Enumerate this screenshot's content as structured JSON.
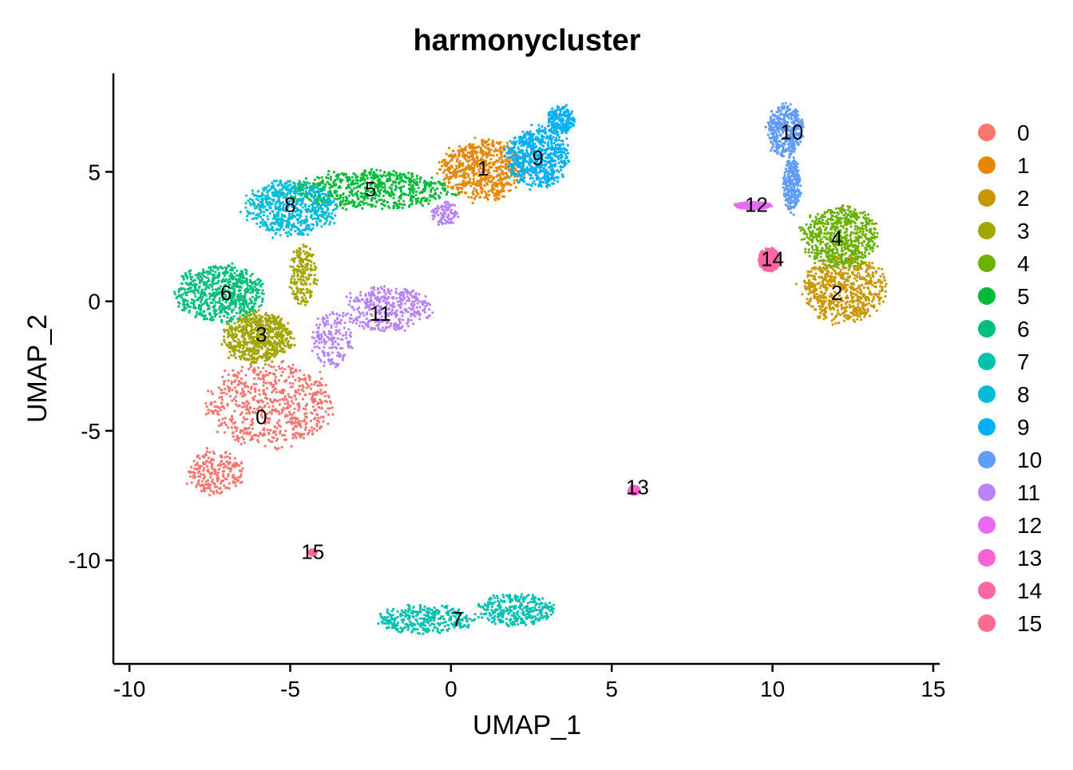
{
  "chart_data": {
    "type": "scatter",
    "title": "harmonycluster",
    "xlabel": "UMAP_1",
    "ylabel": "UMAP_2",
    "xlim": [
      -10.5,
      15.2
    ],
    "ylim": [
      -14,
      8.8
    ],
    "x_ticks": [
      -10,
      -5,
      0,
      5,
      10,
      15
    ],
    "y_ticks": [
      -10,
      -5,
      0,
      5
    ],
    "x_tick_labels": [
      "-10",
      "-5",
      "0",
      "5",
      "10",
      "15"
    ],
    "y_tick_labels": [
      "-10",
      "-5",
      "0",
      "5"
    ],
    "grid": false,
    "legend_position": "right",
    "legend": [
      "0",
      "1",
      "2",
      "3",
      "4",
      "5",
      "6",
      "7",
      "8",
      "9",
      "10",
      "11",
      "12",
      "13",
      "14",
      "15"
    ],
    "colors": [
      "#F8766D",
      "#E58700",
      "#C99800",
      "#A3A500",
      "#6BB100",
      "#00BA38",
      "#00BF7D",
      "#00C0AF",
      "#00BCD8",
      "#00B0F6",
      "#619CFF",
      "#B983FF",
      "#E76BF3",
      "#FD61D1",
      "#FF67A4",
      "#FF6C91"
    ],
    "series": [
      {
        "name": "0",
        "center": [
          -5.9,
          -4.5
        ],
        "blobs": [
          [
            -5.6,
            -4.0,
            1.8,
            1.5,
            1
          ],
          [
            -7.3,
            -6.6,
            0.8,
            0.8,
            0.35
          ]
        ]
      },
      {
        "name": "1",
        "center": [
          1.0,
          5.1
        ],
        "blobs": [
          [
            1.0,
            5.1,
            1.2,
            1.1,
            1
          ]
        ]
      },
      {
        "name": "2",
        "center": [
          12.0,
          0.3
        ],
        "blobs": [
          [
            12.2,
            0.5,
            1.2,
            1.2,
            1
          ]
        ]
      },
      {
        "name": "3",
        "center": [
          -5.9,
          -1.3
        ],
        "blobs": [
          [
            -6.0,
            -1.4,
            1.0,
            0.9,
            1
          ],
          [
            -4.6,
            1.0,
            0.4,
            1.1,
            0.3
          ]
        ]
      },
      {
        "name": "4",
        "center": [
          12.0,
          2.4
        ],
        "blobs": [
          [
            12.1,
            2.5,
            1.1,
            1.1,
            1
          ]
        ]
      },
      {
        "name": "5",
        "center": [
          -2.5,
          4.3
        ],
        "blobs": [
          [
            -2.5,
            4.3,
            2.3,
            0.7,
            1
          ]
        ]
      },
      {
        "name": "6",
        "center": [
          -7.0,
          0.3
        ],
        "blobs": [
          [
            -7.2,
            0.3,
            1.3,
            1.0,
            1
          ]
        ]
      },
      {
        "name": "7",
        "center": [
          0.2,
          -12.3
        ],
        "blobs": [
          [
            -0.8,
            -12.3,
            1.4,
            0.5,
            0.5
          ],
          [
            2.0,
            -11.9,
            1.1,
            0.6,
            0.5
          ]
        ]
      },
      {
        "name": "8",
        "center": [
          -5.0,
          3.7
        ],
        "blobs": [
          [
            -5.0,
            3.6,
            1.3,
            1.0,
            1
          ]
        ]
      },
      {
        "name": "9",
        "center": [
          2.7,
          5.5
        ],
        "blobs": [
          [
            2.7,
            5.6,
            0.9,
            1.1,
            1
          ],
          [
            3.4,
            7.0,
            0.4,
            0.5,
            0.3
          ]
        ]
      },
      {
        "name": "10",
        "center": [
          10.6,
          6.5
        ],
        "blobs": [
          [
            10.4,
            6.6,
            0.5,
            0.9,
            0.6
          ],
          [
            10.6,
            4.5,
            0.25,
            1.0,
            0.4
          ]
        ]
      },
      {
        "name": "11",
        "center": [
          -2.2,
          -0.5
        ],
        "blobs": [
          [
            -2.0,
            -0.3,
            1.3,
            0.8,
            0.6
          ],
          [
            -3.7,
            -1.5,
            0.6,
            1.0,
            0.25
          ],
          [
            -0.2,
            3.4,
            0.4,
            0.4,
            0.15
          ]
        ]
      },
      {
        "name": "12",
        "center": [
          9.5,
          3.7
        ],
        "blobs": [
          [
            9.4,
            3.7,
            0.5,
            0.12,
            1
          ]
        ]
      },
      {
        "name": "13",
        "center": [
          5.8,
          -7.2
        ],
        "blobs": [
          [
            5.7,
            -7.3,
            0.15,
            0.15,
            1
          ]
        ]
      },
      {
        "name": "14",
        "center": [
          10.0,
          1.6
        ],
        "blobs": [
          [
            9.9,
            1.6,
            0.3,
            0.4,
            1
          ]
        ]
      },
      {
        "name": "15",
        "center": [
          -4.3,
          -9.7
        ],
        "blobs": [
          [
            -4.3,
            -9.7,
            0.1,
            0.1,
            1
          ]
        ]
      }
    ]
  }
}
